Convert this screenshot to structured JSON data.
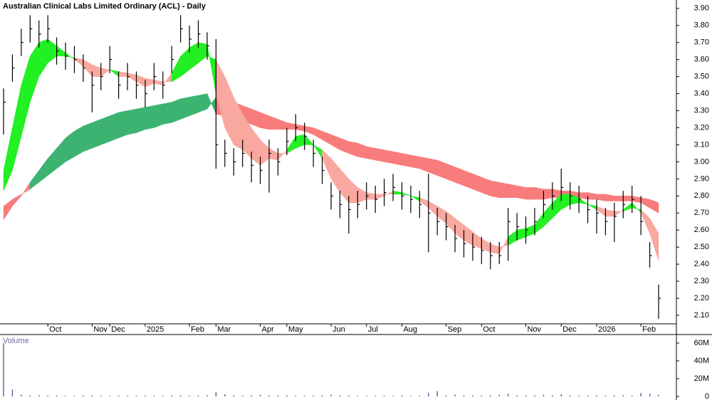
{
  "chart_data": {
    "type": "ohlc",
    "title": "Australian Clinical Labs Limited Ordinary (ACL) - Daily",
    "categories": [
      null,
      null,
      null,
      null,
      null,
      "Oct",
      null,
      null,
      null,
      null,
      "Nov",
      null,
      "Dec",
      null,
      null,
      null,
      "2025",
      null,
      null,
      null,
      null,
      "Feb",
      null,
      null,
      "Mar",
      null,
      null,
      null,
      null,
      "Apr",
      null,
      null,
      "May",
      null,
      null,
      null,
      null,
      "Jun",
      null,
      null,
      null,
      "Jul",
      null,
      null,
      null,
      "Aug",
      null,
      null,
      null,
      null,
      "Sep",
      null,
      null,
      null,
      "Oct",
      null,
      null,
      null,
      null,
      "Nov",
      null,
      null,
      null,
      "Dec",
      null,
      null,
      null,
      "2026",
      null,
      null,
      null,
      null,
      "Feb",
      null,
      null
    ],
    "close": [
      3.35,
      3.55,
      3.7,
      3.78,
      3.75,
      3.78,
      3.65,
      3.62,
      3.6,
      3.55,
      3.45,
      3.5,
      3.6,
      3.45,
      3.5,
      3.45,
      3.4,
      3.5,
      3.45,
      3.6,
      3.78,
      3.72,
      3.75,
      3.68,
      3.1,
      3.05,
      3.0,
      3.05,
      2.98,
      2.95,
      3.05,
      3.0,
      3.12,
      3.2,
      3.15,
      3.05,
      2.95,
      2.8,
      2.75,
      2.72,
      2.75,
      2.8,
      2.78,
      2.82,
      2.85,
      2.8,
      2.78,
      2.75,
      2.7,
      2.65,
      2.62,
      2.55,
      2.52,
      2.5,
      2.48,
      2.45,
      2.45,
      2.65,
      2.62,
      2.6,
      2.65,
      2.75,
      2.8,
      2.85,
      2.8,
      2.78,
      2.72,
      2.7,
      2.65,
      2.68,
      2.75,
      2.78,
      2.65,
      2.45,
      2.2
    ],
    "high": [
      3.43,
      3.63,
      3.78,
      3.86,
      3.83,
      3.86,
      3.73,
      3.7,
      3.68,
      3.63,
      3.53,
      3.58,
      3.68,
      3.53,
      3.58,
      3.53,
      3.48,
      3.58,
      3.53,
      3.68,
      3.86,
      3.8,
      3.83,
      3.76,
      3.72,
      3.13,
      3.08,
      3.13,
      3.06,
      3.03,
      3.13,
      3.08,
      3.2,
      3.28,
      3.23,
      3.13,
      3.03,
      2.88,
      2.83,
      2.8,
      2.83,
      2.88,
      2.86,
      2.9,
      2.93,
      2.88,
      2.86,
      2.83,
      2.93,
      2.73,
      2.7,
      2.63,
      2.6,
      2.58,
      2.56,
      2.53,
      2.53,
      2.73,
      2.7,
      2.68,
      2.73,
      2.83,
      2.88,
      2.96,
      2.88,
      2.86,
      2.8,
      2.78,
      2.73,
      2.76,
      2.83,
      2.86,
      2.8,
      2.53,
      2.28
    ],
    "low": [
      3.16,
      3.47,
      3.62,
      3.7,
      3.67,
      3.7,
      3.57,
      3.54,
      3.52,
      3.47,
      3.29,
      3.42,
      3.52,
      3.37,
      3.42,
      3.37,
      3.32,
      3.42,
      3.37,
      3.52,
      3.7,
      3.64,
      3.67,
      3.6,
      2.96,
      2.97,
      2.92,
      2.97,
      2.88,
      2.87,
      2.82,
      2.92,
      3.04,
      3.12,
      3.07,
      2.97,
      2.87,
      2.72,
      2.67,
      2.58,
      2.67,
      2.72,
      2.7,
      2.74,
      2.77,
      2.72,
      2.7,
      2.67,
      2.47,
      2.57,
      2.54,
      2.47,
      2.44,
      2.42,
      2.4,
      2.37,
      2.4,
      2.42,
      2.54,
      2.52,
      2.57,
      2.67,
      2.72,
      2.77,
      2.72,
      2.7,
      2.64,
      2.58,
      2.57,
      2.53,
      2.67,
      2.7,
      2.57,
      2.38,
      2.08
    ],
    "color": "#000000",
    "bands": [
      {
        "fast": [
          2.66,
          2.74,
          2.8,
          2.88,
          2.95,
          3.02,
          3.08,
          3.14,
          3.18,
          3.21,
          3.23,
          3.25,
          3.27,
          3.29,
          3.3,
          3.31,
          3.32,
          3.33,
          3.34,
          3.35,
          3.37,
          3.38,
          3.39,
          3.4,
          3.28,
          3.27,
          3.25,
          3.24,
          3.22,
          3.2,
          3.19,
          3.19,
          3.19,
          3.19,
          3.18,
          3.16,
          3.13,
          3.1,
          3.07,
          3.05,
          3.03,
          3.02,
          3.01,
          3.0,
          2.99,
          2.98,
          2.97,
          2.96,
          2.94,
          2.92,
          2.9,
          2.88,
          2.86,
          2.84,
          2.82,
          2.8,
          2.79,
          2.79,
          2.79,
          2.78,
          2.78,
          2.78,
          2.79,
          2.79,
          2.79,
          2.79,
          2.78,
          2.78,
          2.77,
          2.77,
          2.77,
          2.77,
          2.76,
          2.73,
          2.7
        ],
        "slow": [
          2.74,
          2.78,
          2.81,
          2.84,
          2.88,
          2.92,
          2.96,
          3.0,
          3.03,
          3.06,
          3.08,
          3.1,
          3.12,
          3.14,
          3.16,
          3.17,
          3.19,
          3.2,
          3.22,
          3.23,
          3.25,
          3.27,
          3.29,
          3.31,
          3.38,
          3.37,
          3.35,
          3.33,
          3.31,
          3.29,
          3.27,
          3.25,
          3.23,
          3.22,
          3.21,
          3.2,
          3.18,
          3.16,
          3.14,
          3.12,
          3.11,
          3.09,
          3.08,
          3.07,
          3.06,
          3.05,
          3.04,
          3.03,
          3.02,
          3.01,
          2.99,
          2.97,
          2.95,
          2.93,
          2.91,
          2.89,
          2.88,
          2.87,
          2.86,
          2.85,
          2.85,
          2.84,
          2.84,
          2.83,
          2.83,
          2.82,
          2.82,
          2.81,
          2.81,
          2.8,
          2.8,
          2.8,
          2.79,
          2.78,
          2.76
        ],
        "up_color": "#3cb371",
        "down_color": "#f87c7c"
      },
      {
        "fast": [
          2.95,
          3.2,
          3.45,
          3.62,
          3.7,
          3.72,
          3.68,
          3.64,
          3.6,
          3.56,
          3.5,
          3.5,
          3.54,
          3.5,
          3.5,
          3.47,
          3.44,
          3.46,
          3.45,
          3.52,
          3.62,
          3.67,
          3.7,
          3.69,
          3.4,
          3.2,
          3.1,
          3.07,
          3.02,
          2.98,
          3.02,
          3.01,
          3.07,
          3.15,
          3.16,
          3.1,
          3.02,
          2.9,
          2.82,
          2.76,
          2.76,
          2.78,
          2.78,
          2.8,
          2.83,
          2.82,
          2.8,
          2.77,
          2.73,
          2.68,
          2.64,
          2.58,
          2.54,
          2.51,
          2.49,
          2.47,
          2.46,
          2.56,
          2.6,
          2.61,
          2.63,
          2.7,
          2.76,
          2.81,
          2.81,
          2.79,
          2.75,
          2.72,
          2.68,
          2.68,
          2.72,
          2.76,
          2.7,
          2.58,
          2.42
        ],
        "slow": [
          2.83,
          2.95,
          3.15,
          3.35,
          3.5,
          3.58,
          3.62,
          3.62,
          3.61,
          3.6,
          3.57,
          3.55,
          3.54,
          3.53,
          3.52,
          3.51,
          3.49,
          3.48,
          3.47,
          3.47,
          3.5,
          3.54,
          3.58,
          3.62,
          3.6,
          3.5,
          3.38,
          3.28,
          3.2,
          3.13,
          3.08,
          3.05,
          3.05,
          3.08,
          3.1,
          3.1,
          3.07,
          3.02,
          2.96,
          2.9,
          2.85,
          2.82,
          2.81,
          2.81,
          2.81,
          2.81,
          2.8,
          2.79,
          2.77,
          2.74,
          2.71,
          2.67,
          2.63,
          2.59,
          2.55,
          2.52,
          2.5,
          2.51,
          2.54,
          2.56,
          2.58,
          2.62,
          2.67,
          2.72,
          2.75,
          2.76,
          2.75,
          2.74,
          2.72,
          2.71,
          2.71,
          2.73,
          2.72,
          2.67,
          2.58
        ],
        "up_color": "#22f022",
        "down_color": "#f9a8a0"
      }
    ],
    "ylim": [
      2.05,
      3.945
    ],
    "yticks": [
      {
        "value": 2.1,
        "label": "2.10"
      },
      {
        "value": 2.2,
        "label": "2.20"
      },
      {
        "value": 2.3,
        "label": "2.30"
      },
      {
        "value": 2.4,
        "label": "2.40"
      },
      {
        "value": 2.5,
        "label": "2.50"
      },
      {
        "value": 2.6,
        "label": "2.60"
      },
      {
        "value": 2.7,
        "label": "2.70"
      },
      {
        "value": 2.8,
        "label": "2.80"
      },
      {
        "value": 2.9,
        "label": "2.90"
      },
      {
        "value": 3.0,
        "label": "3.00"
      },
      {
        "value": 3.1,
        "label": "3.10"
      },
      {
        "value": 3.2,
        "label": "3.20"
      },
      {
        "value": 3.3,
        "label": "3.30"
      },
      {
        "value": 3.4,
        "label": "3.40"
      },
      {
        "value": 3.5,
        "label": "3.50"
      },
      {
        "value": 3.6,
        "label": "3.60"
      },
      {
        "value": 3.7,
        "label": "3.70"
      },
      {
        "value": 3.8,
        "label": "3.80"
      },
      {
        "value": 3.9,
        "label": "3.90"
      }
    ],
    "volume": {
      "label": "Volume",
      "color": "#6a6aa8",
      "values": [
        60000000,
        8000000,
        2000000,
        1500000,
        1500000,
        1200000,
        1200000,
        1000000,
        1000000,
        1200000,
        1500000,
        1000000,
        1000000,
        1200000,
        1000000,
        1000000,
        1200000,
        1000000,
        1000000,
        1500000,
        1500000,
        1200000,
        1200000,
        1500000,
        5000000,
        2500000,
        1500000,
        1200000,
        1500000,
        2000000,
        1500000,
        1200000,
        1500000,
        1200000,
        1000000,
        1200000,
        1500000,
        2000000,
        1500000,
        1200000,
        1000000,
        1000000,
        1000000,
        1000000,
        1000000,
        1200000,
        1000000,
        1000000,
        4000000,
        6000000,
        1500000,
        2000000,
        1500000,
        1200000,
        1200000,
        1500000,
        2000000,
        3000000,
        1500000,
        1200000,
        1500000,
        2000000,
        1500000,
        2500000,
        1500000,
        1200000,
        1200000,
        1500000,
        1200000,
        1500000,
        1500000,
        1200000,
        4000000,
        3000000,
        2000000
      ],
      "ylim": [
        0,
        69600000
      ],
      "yticks": [
        0,
        {
          "value": 20000000,
          "label": "20M"
        },
        {
          "value": 40000000,
          "label": "40M"
        },
        {
          "value": 60000000,
          "label": "60M"
        }
      ]
    }
  }
}
